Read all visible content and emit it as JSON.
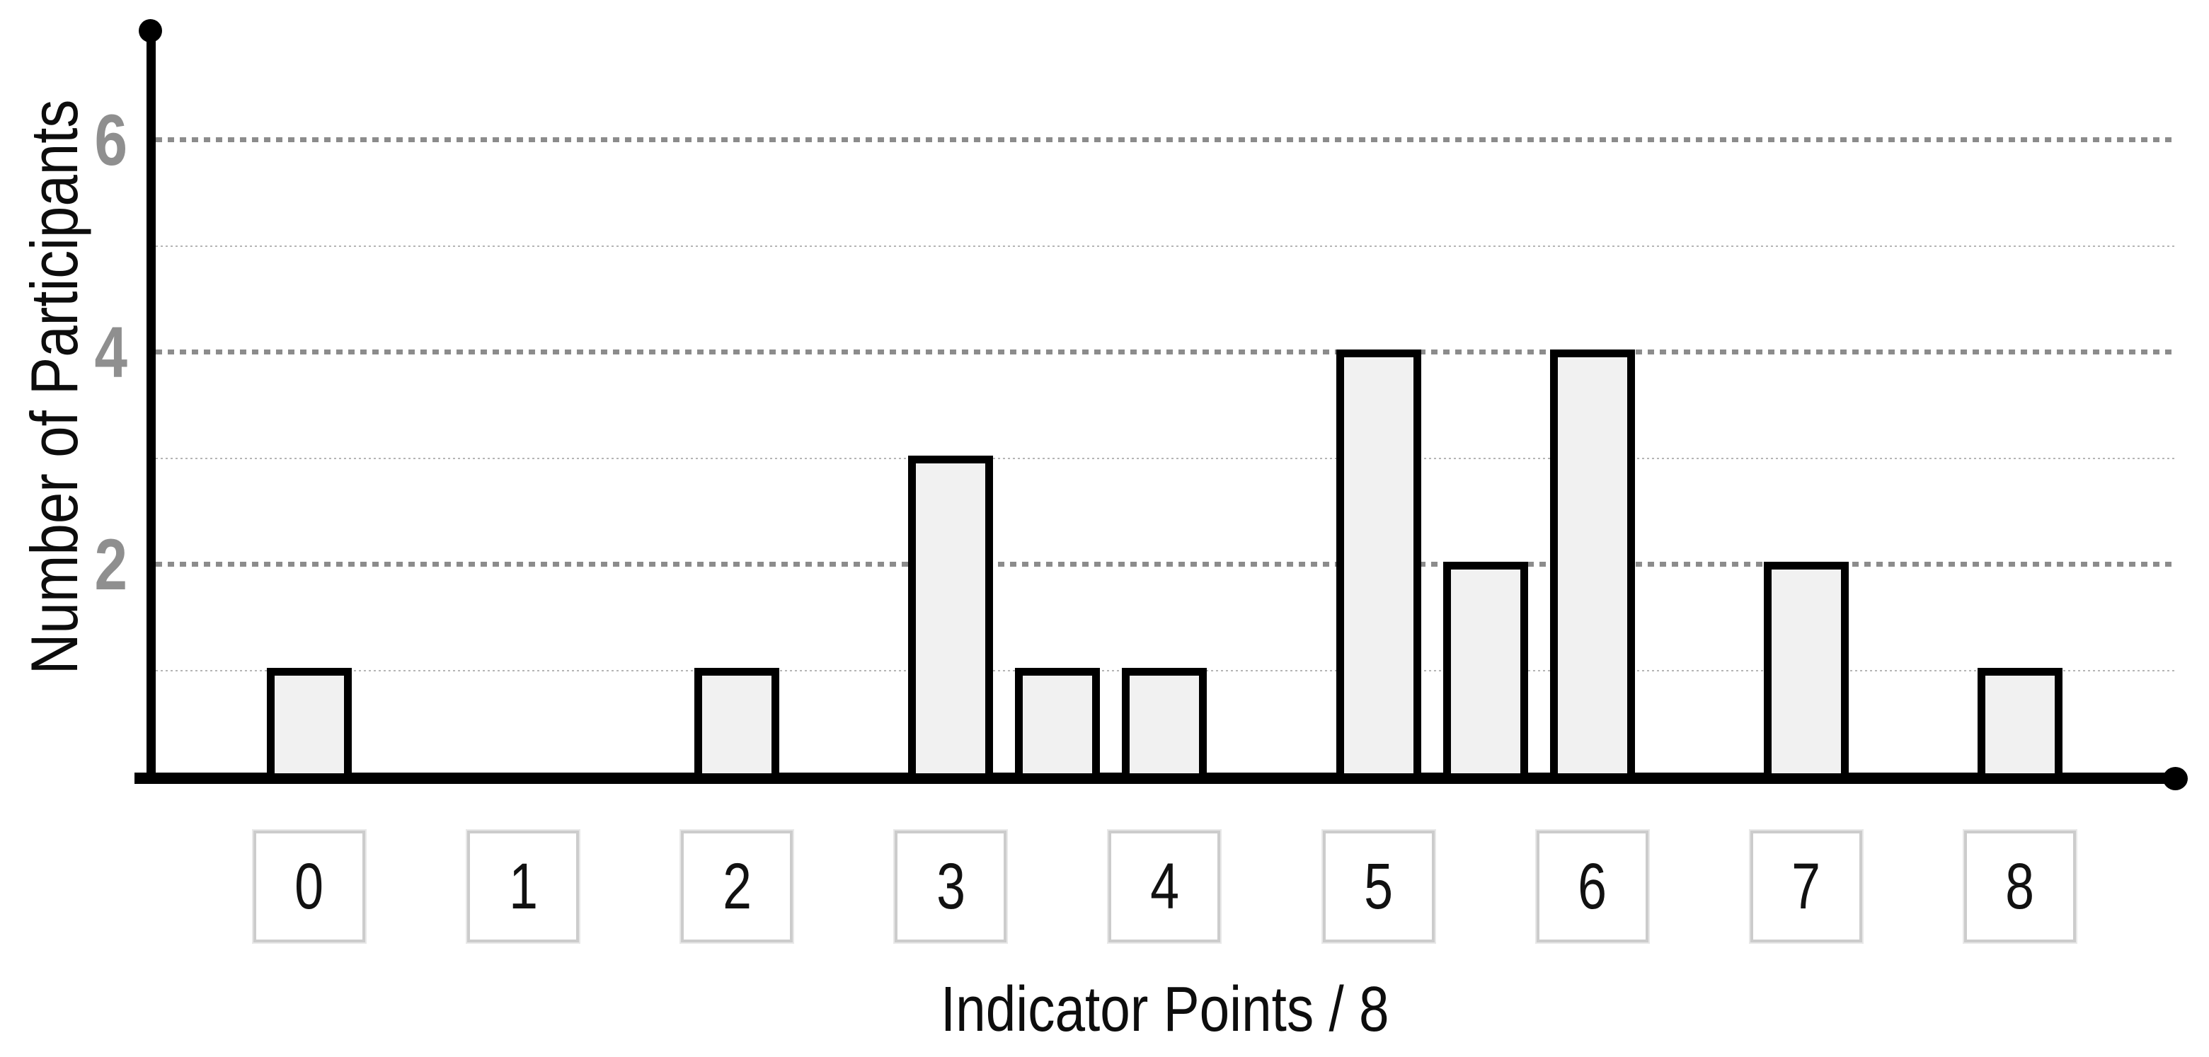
{
  "page": {
    "background_color": "#ffffff"
  },
  "chart_data": {
    "type": "bar",
    "title": "",
    "xlabel": "Indicator Points / 8",
    "ylabel": "Number of Participants",
    "x_tick_labels": [
      "0",
      "1",
      "2",
      "3",
      "4",
      "5",
      "6",
      "7",
      "8"
    ],
    "y_tick_labels": [
      "2",
      "4",
      "6"
    ],
    "y_ticks": [
      2,
      4,
      6
    ],
    "ylim": [
      0,
      7
    ],
    "xlim": [
      0,
      8
    ],
    "grid": {
      "dark_dashed_levels": [
        2,
        4,
        6
      ],
      "light_dotted_levels": [
        1,
        3,
        5
      ],
      "legend_position": "none"
    },
    "bars": [
      {
        "x": 0,
        "count": 1
      },
      {
        "x": 1,
        "count": 0
      },
      {
        "x": 2,
        "count": 1
      },
      {
        "x": 3,
        "count": 3
      },
      {
        "x": 3.5,
        "count": 1
      },
      {
        "x": 4,
        "count": 1
      },
      {
        "x": 5,
        "count": 4
      },
      {
        "x": 5.5,
        "count": 2
      },
      {
        "x": 6,
        "count": 4
      },
      {
        "x": 7,
        "count": 2
      },
      {
        "x": 8,
        "count": 1
      }
    ],
    "colors": {
      "bar_fill": "#f1f1f1",
      "bar_border": "#000000",
      "axis": "#000000",
      "grid_dark": "#8c8c8c",
      "grid_light": "#b5b5b5",
      "y_tick_label": "#8f8f8f",
      "x_box_border": "#cccccc",
      "text": "#0d0d0d"
    }
  }
}
